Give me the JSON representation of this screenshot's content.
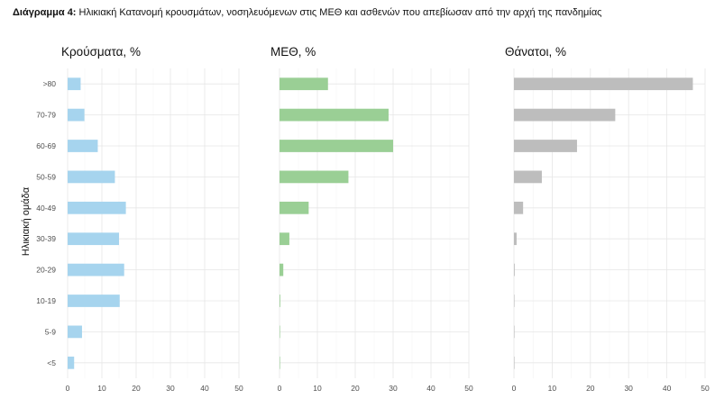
{
  "caption": {
    "label": "Διάγραμμα 4:",
    "text": " Ηλικιακή Κατανομή κρουσμάτων, νοσηλευόμενων στις ΜΕΘ και ασθενών που απεβίωσαν από την αρχή της πανδημίας"
  },
  "chart_data": {
    "type": "bar",
    "orientation": "horizontal",
    "ylabel": "Ηλικιακή ομάδα",
    "categories": [
      ">80",
      "70-79",
      "60-69",
      "50-59",
      "40-49",
      "30-39",
      "20-29",
      "10-19",
      "5-9",
      "<5"
    ],
    "xlim": [
      0,
      50
    ],
    "xticks": [
      0,
      10,
      20,
      30,
      40,
      50
    ],
    "grid": true,
    "panels": [
      {
        "title": "Κρούσματα, %",
        "color": "#a6d4ee",
        "values": [
          3.8,
          4.9,
          8.8,
          13.8,
          17.0,
          15.0,
          16.5,
          15.2,
          4.2,
          1.9
        ]
      },
      {
        "title": "ΜΕΘ, %",
        "color": "#9acf95",
        "values": [
          12.8,
          28.8,
          30.0,
          18.2,
          7.7,
          2.6,
          1.0,
          0.2,
          0.1,
          0.1
        ]
      },
      {
        "title": "Θάνατοι, %",
        "color": "#bdbdbd",
        "values": [
          46.8,
          26.5,
          16.5,
          7.3,
          2.4,
          0.7,
          0.2,
          0.1,
          0.0,
          0.1
        ]
      }
    ]
  }
}
